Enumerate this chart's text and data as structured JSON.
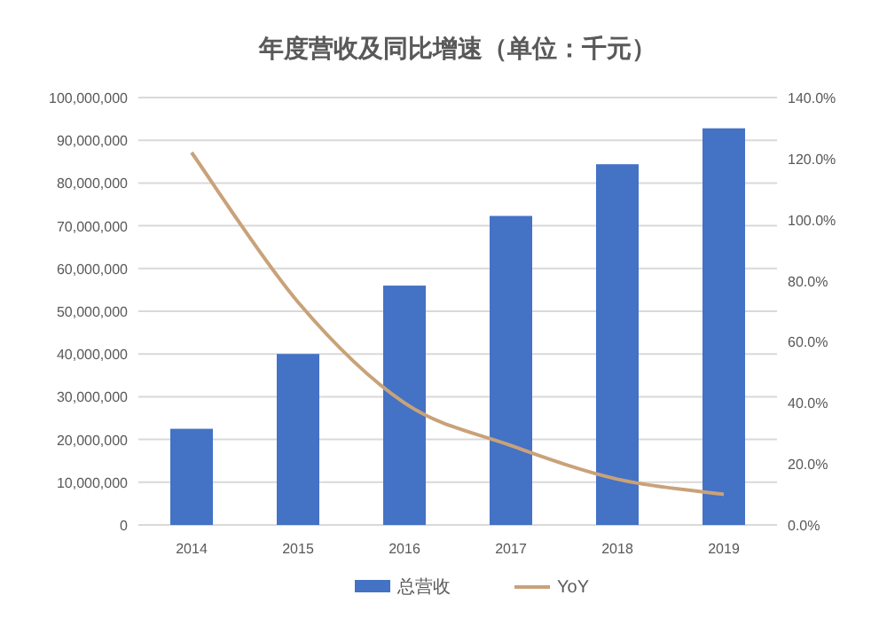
{
  "chart_data": {
    "type": "bar",
    "title": "年度营收及同比增速（单位：千元）",
    "categories": [
      "2014",
      "2015",
      "2016",
      "2017",
      "2018",
      "2019"
    ],
    "series": [
      {
        "name": "总营收",
        "color": "#4472c4",
        "values": [
          22500000,
          40000000,
          56000000,
          72300000,
          84400000,
          92800000
        ]
      },
      {
        "name": "YoY",
        "type": "line",
        "axis": "y2",
        "color": "#c9a27a",
        "values": [
          122,
          73,
          40,
          26,
          15,
          10
        ]
      }
    ],
    "ylim": [
      0,
      100000000
    ],
    "yticks": [
      {
        "value": 0,
        "label": "0"
      },
      {
        "value": 10000000,
        "label": "10,000,000"
      },
      {
        "value": 20000000,
        "label": "20,000,000"
      },
      {
        "value": 30000000,
        "label": "30,000,000"
      },
      {
        "value": 40000000,
        "label": "40,000,000"
      },
      {
        "value": 50000000,
        "label": "50,000,000"
      },
      {
        "value": 60000000,
        "label": "60,000,000"
      },
      {
        "value": 70000000,
        "label": "70,000,000"
      },
      {
        "value": 80000000,
        "label": "80,000,000"
      },
      {
        "value": 90000000,
        "label": "90,000,000"
      },
      {
        "value": 100000000,
        "label": "100,000,000"
      }
    ],
    "y2lim": [
      0,
      140
    ],
    "y2ticks": [
      {
        "value": 0,
        "label": "0.0%"
      },
      {
        "value": 20,
        "label": "20.0%"
      },
      {
        "value": 40,
        "label": "40.0%"
      },
      {
        "value": 60,
        "label": "60.0%"
      },
      {
        "value": 80,
        "label": "80.0%"
      },
      {
        "value": 100,
        "label": "100.0%"
      },
      {
        "value": 120,
        "label": "120.0%"
      },
      {
        "value": 140,
        "label": "140.0%"
      }
    ],
    "grid": "y",
    "legend": "bottom"
  }
}
